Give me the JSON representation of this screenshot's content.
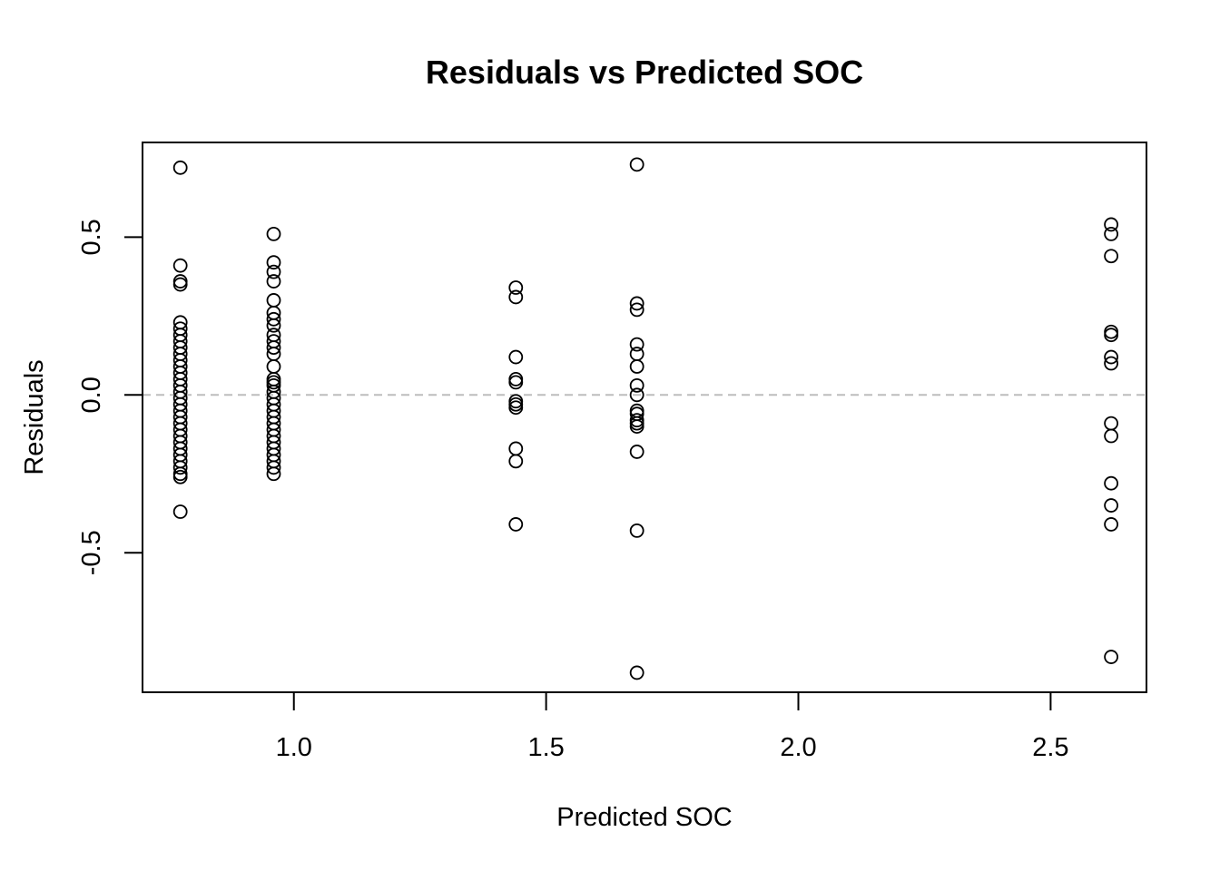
{
  "chart_data": {
    "type": "scatter",
    "title": "Residuals vs Predicted SOC",
    "xlabel": "Predicted SOC",
    "ylabel": "Residuals",
    "xlim": [
      0.7,
      2.69
    ],
    "ylim": [
      -0.942,
      0.8
    ],
    "x_ticks": [
      1.0,
      1.5,
      2.0,
      2.5
    ],
    "x_tick_labels": [
      "1.0",
      "1.5",
      "2.0",
      "2.5"
    ],
    "y_ticks": [
      -0.5,
      0.0,
      0.5
    ],
    "y_tick_labels": [
      "-0.5",
      "0.0",
      "0.5"
    ],
    "reference_line": {
      "y": 0.0,
      "style": "dashed",
      "color": "#bdbdbd"
    },
    "grid": false,
    "marker": "open-circle",
    "series": [
      {
        "points": [
          [
            0.775,
            0.72
          ],
          [
            0.775,
            0.41
          ],
          [
            0.775,
            0.36
          ],
          [
            0.775,
            0.35
          ],
          [
            0.775,
            0.23
          ],
          [
            0.775,
            0.21
          ],
          [
            0.775,
            0.19
          ],
          [
            0.775,
            0.17
          ],
          [
            0.775,
            0.15
          ],
          [
            0.775,
            0.13
          ],
          [
            0.775,
            0.11
          ],
          [
            0.775,
            0.09
          ],
          [
            0.775,
            0.07
          ],
          [
            0.775,
            0.05
          ],
          [
            0.775,
            0.03
          ],
          [
            0.775,
            0.01
          ],
          [
            0.775,
            -0.01
          ],
          [
            0.775,
            -0.03
          ],
          [
            0.775,
            -0.05
          ],
          [
            0.775,
            -0.07
          ],
          [
            0.775,
            -0.09
          ],
          [
            0.775,
            -0.11
          ],
          [
            0.775,
            -0.13
          ],
          [
            0.775,
            -0.15
          ],
          [
            0.775,
            -0.17
          ],
          [
            0.775,
            -0.19
          ],
          [
            0.775,
            -0.21
          ],
          [
            0.775,
            -0.23
          ],
          [
            0.775,
            -0.25
          ],
          [
            0.775,
            -0.26
          ],
          [
            0.775,
            -0.37
          ],
          [
            0.96,
            0.51
          ],
          [
            0.96,
            0.42
          ],
          [
            0.96,
            0.39
          ],
          [
            0.96,
            0.36
          ],
          [
            0.96,
            0.3
          ],
          [
            0.96,
            0.26
          ],
          [
            0.96,
            0.24
          ],
          [
            0.96,
            0.22
          ],
          [
            0.96,
            0.19
          ],
          [
            0.96,
            0.17
          ],
          [
            0.96,
            0.15
          ],
          [
            0.96,
            0.13
          ],
          [
            0.96,
            0.09
          ],
          [
            0.96,
            0.05
          ],
          [
            0.96,
            0.04
          ],
          [
            0.96,
            0.03
          ],
          [
            0.96,
            0.01
          ],
          [
            0.96,
            -0.01
          ],
          [
            0.96,
            -0.03
          ],
          [
            0.96,
            -0.05
          ],
          [
            0.96,
            -0.07
          ],
          [
            0.96,
            -0.09
          ],
          [
            0.96,
            -0.11
          ],
          [
            0.96,
            -0.13
          ],
          [
            0.96,
            -0.15
          ],
          [
            0.96,
            -0.17
          ],
          [
            0.96,
            -0.19
          ],
          [
            0.96,
            -0.21
          ],
          [
            0.96,
            -0.23
          ],
          [
            0.96,
            -0.25
          ],
          [
            1.44,
            0.34
          ],
          [
            1.44,
            0.31
          ],
          [
            1.44,
            0.12
          ],
          [
            1.44,
            0.05
          ],
          [
            1.44,
            0.04
          ],
          [
            1.44,
            -0.02
          ],
          [
            1.44,
            -0.03
          ],
          [
            1.44,
            -0.04
          ],
          [
            1.44,
            -0.17
          ],
          [
            1.44,
            -0.21
          ],
          [
            1.44,
            -0.41
          ],
          [
            1.68,
            0.73
          ],
          [
            1.68,
            0.29
          ],
          [
            1.68,
            0.27
          ],
          [
            1.68,
            0.16
          ],
          [
            1.68,
            0.13
          ],
          [
            1.68,
            0.09
          ],
          [
            1.68,
            0.03
          ],
          [
            1.68,
            0.0
          ],
          [
            1.68,
            -0.05
          ],
          [
            1.68,
            -0.06
          ],
          [
            1.68,
            -0.08
          ],
          [
            1.68,
            -0.09
          ],
          [
            1.68,
            -0.1
          ],
          [
            1.68,
            -0.18
          ],
          [
            1.68,
            -0.43
          ],
          [
            1.68,
            -0.88
          ],
          [
            2.62,
            0.54
          ],
          [
            2.62,
            0.51
          ],
          [
            2.62,
            0.44
          ],
          [
            2.62,
            0.2
          ],
          [
            2.62,
            0.19
          ],
          [
            2.62,
            0.12
          ],
          [
            2.62,
            0.1
          ],
          [
            2.62,
            -0.09
          ],
          [
            2.62,
            -0.13
          ],
          [
            2.62,
            -0.28
          ],
          [
            2.62,
            -0.35
          ],
          [
            2.62,
            -0.41
          ],
          [
            2.62,
            -0.83
          ]
        ]
      }
    ]
  }
}
